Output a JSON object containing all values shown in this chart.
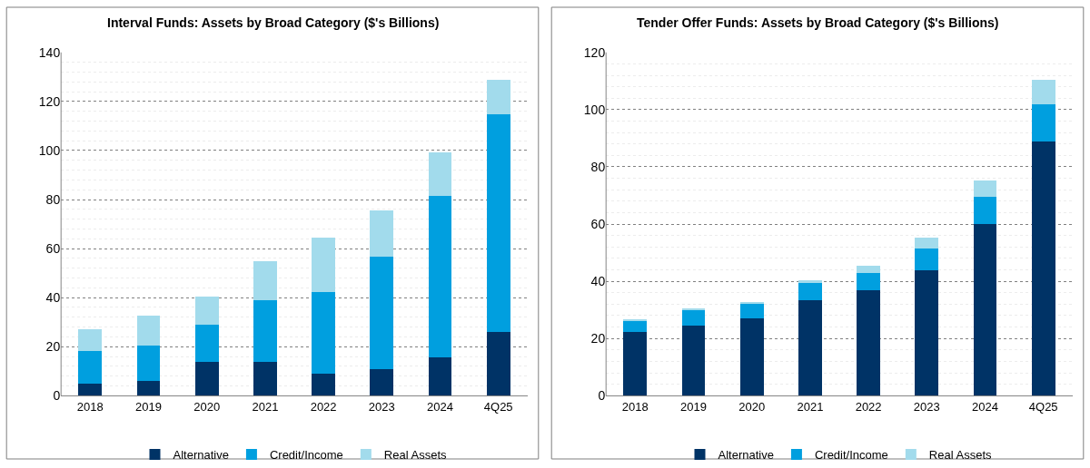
{
  "chart_data": [
    {
      "type": "bar",
      "title": "Interval Funds: Assets by Broad Category ($'s Billions)",
      "stacked": true,
      "categories": [
        "2018",
        "2019",
        "2020",
        "2021",
        "2022",
        "2023",
        "2024",
        "4Q25"
      ],
      "ylim": [
        0,
        140
      ],
      "yticks": [
        0,
        20,
        40,
        60,
        80,
        100,
        120,
        140
      ],
      "grid": "y",
      "legend": "bottom",
      "series": [
        {
          "name": "Alternative",
          "color": "#003366",
          "values": [
            4.9,
            5.9,
            13.9,
            13.9,
            9.0,
            10.7,
            15.8,
            26.0
          ]
        },
        {
          "name": "Credit/Income",
          "color": "#009fdf",
          "values": [
            13.4,
            14.7,
            15.2,
            25.1,
            33.4,
            46.1,
            65.8,
            88.6
          ]
        },
        {
          "name": "Real Assets",
          "color": "#a2dbec",
          "values": [
            8.8,
            11.9,
            11.2,
            15.8,
            21.9,
            18.7,
            17.5,
            14.1
          ]
        }
      ]
    },
    {
      "type": "bar",
      "title": "Tender Offer Funds: Assets by Broad Category ($'s Billions)",
      "stacked": true,
      "categories": [
        "2018",
        "2019",
        "2020",
        "2021",
        "2022",
        "2023",
        "2024",
        "4Q25"
      ],
      "ylim": [
        0,
        120
      ],
      "yticks": [
        0,
        20,
        40,
        60,
        80,
        100,
        120
      ],
      "grid": "y",
      "legend": "bottom",
      "series": [
        {
          "name": "Alternative",
          "color": "#003366",
          "values": [
            22.4,
            24.5,
            26.9,
            33.5,
            36.8,
            43.9,
            60.0,
            88.8
          ]
        },
        {
          "name": "Credit/Income",
          "color": "#009fdf",
          "values": [
            3.6,
            5.4,
            5.1,
            5.8,
            6.0,
            7.4,
            9.4,
            13.1
          ]
        },
        {
          "name": "Real Assets",
          "color": "#a2dbec",
          "values": [
            0.7,
            0.7,
            0.7,
            0.9,
            2.5,
            3.9,
            5.7,
            8.5
          ]
        }
      ]
    }
  ]
}
